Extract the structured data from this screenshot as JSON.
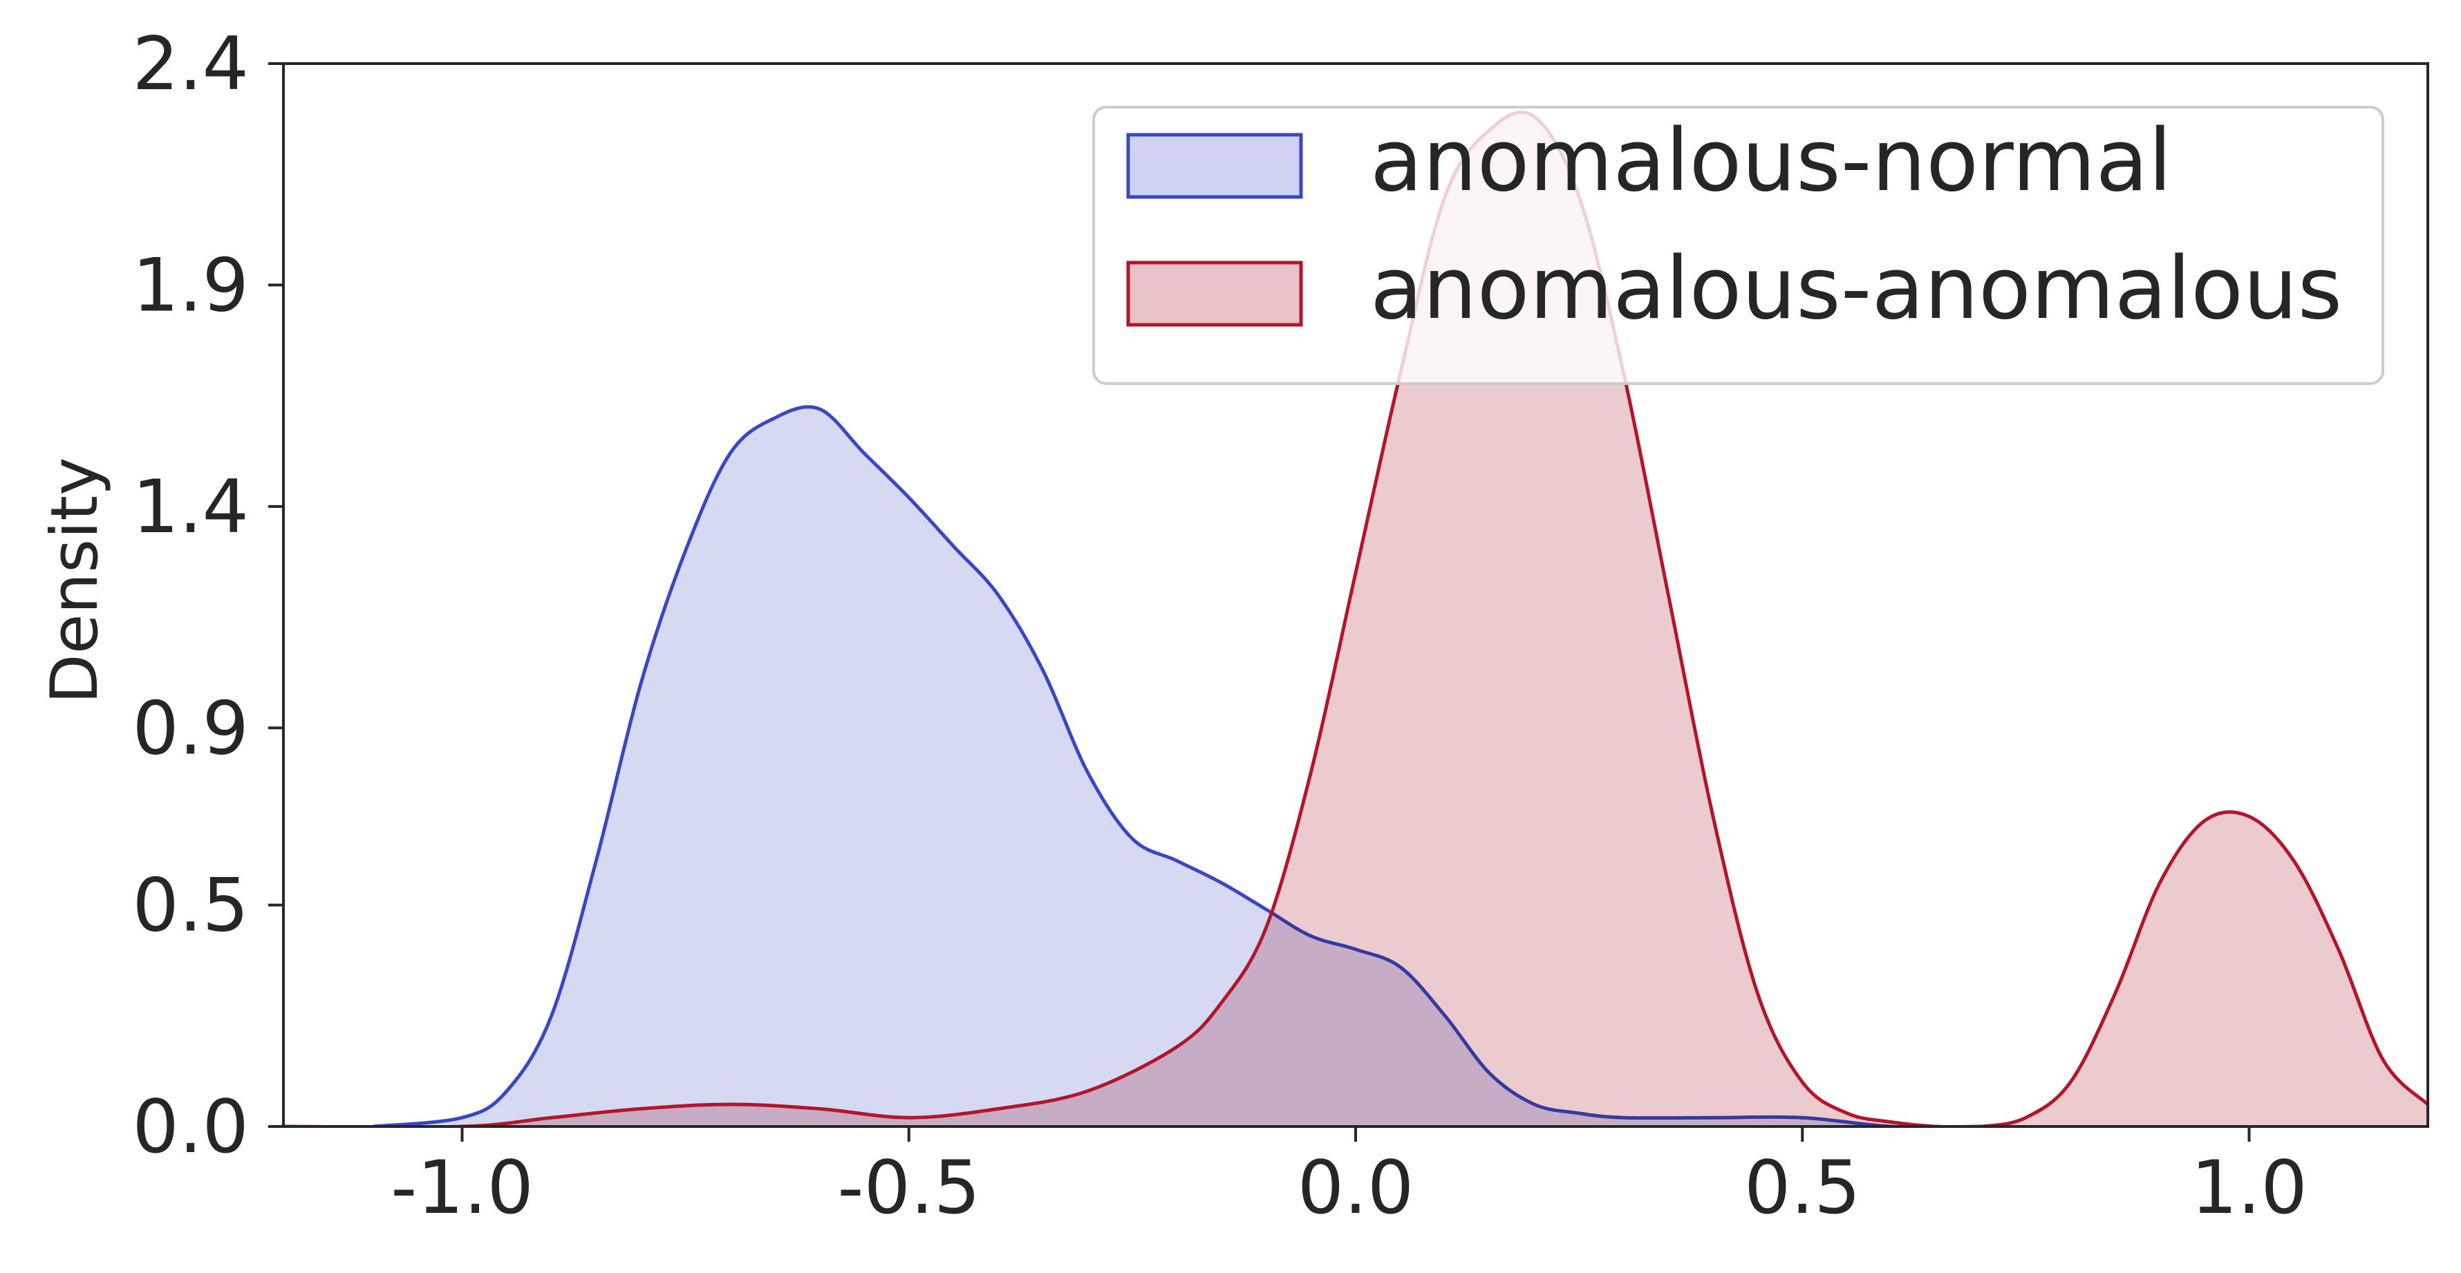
{
  "chart_data": {
    "type": "area",
    "title": "",
    "xlabel": "",
    "ylabel": "Density",
    "xlim": [
      -1.2,
      1.2
    ],
    "ylim": [
      0.0,
      2.4
    ],
    "x_ticks": [
      -1.0,
      -0.5,
      0.0,
      0.5,
      1.0
    ],
    "x_tick_labels": [
      "-1.0",
      "-0.5",
      "0.0",
      "0.5",
      "1.0"
    ],
    "y_ticks": [
      0.0,
      0.5,
      0.9,
      1.4,
      1.9,
      2.4
    ],
    "y_tick_labels": [
      "0.0",
      "0.5",
      "0.9",
      "1.4",
      "1.9",
      "2.4"
    ],
    "grid": false,
    "legend_position": "top-right",
    "series": [
      {
        "name": "anomalous-normal",
        "line_color": "#3a47c4",
        "fill_color": "#cfd2f0",
        "x": [
          -1.1,
          -1.0,
          -0.95,
          -0.9,
          -0.85,
          -0.8,
          -0.75,
          -0.7,
          -0.65,
          -0.6,
          -0.55,
          -0.5,
          -0.45,
          -0.4,
          -0.35,
          -0.3,
          -0.25,
          -0.2,
          -0.15,
          -0.1,
          -0.05,
          0.0,
          0.05,
          0.1,
          0.15,
          0.2,
          0.25,
          0.3,
          0.4,
          0.5,
          0.6,
          0.7
        ],
        "y": [
          0.0,
          0.02,
          0.08,
          0.25,
          0.6,
          1.0,
          1.3,
          1.52,
          1.6,
          1.62,
          1.52,
          1.42,
          1.31,
          1.2,
          1.03,
          0.8,
          0.65,
          0.6,
          0.55,
          0.49,
          0.43,
          0.4,
          0.36,
          0.25,
          0.12,
          0.05,
          0.03,
          0.02,
          0.02,
          0.02,
          0.0,
          0.0
        ]
      },
      {
        "name": "anomalous-anomalous",
        "line_color": "#b3162b",
        "fill_color": "#e9c2c7",
        "x": [
          -1.2,
          -1.0,
          -0.9,
          -0.8,
          -0.7,
          -0.6,
          -0.5,
          -0.4,
          -0.3,
          -0.2,
          -0.15,
          -0.1,
          -0.05,
          0.0,
          0.05,
          0.1,
          0.15,
          0.2,
          0.25,
          0.3,
          0.35,
          0.4,
          0.45,
          0.5,
          0.55,
          0.6,
          0.65,
          0.7,
          0.75,
          0.8,
          0.85,
          0.9,
          0.95,
          1.0,
          1.05,
          1.1,
          1.15,
          1.2
        ],
        "y": [
          0.0,
          0.0,
          0.02,
          0.04,
          0.05,
          0.04,
          0.02,
          0.04,
          0.08,
          0.18,
          0.28,
          0.45,
          0.8,
          1.25,
          1.7,
          2.1,
          2.25,
          2.28,
          2.1,
          1.7,
          1.2,
          0.7,
          0.3,
          0.1,
          0.03,
          0.01,
          0.0,
          0.0,
          0.02,
          0.1,
          0.3,
          0.55,
          0.69,
          0.7,
          0.6,
          0.4,
          0.15,
          0.05
        ]
      }
    ]
  }
}
